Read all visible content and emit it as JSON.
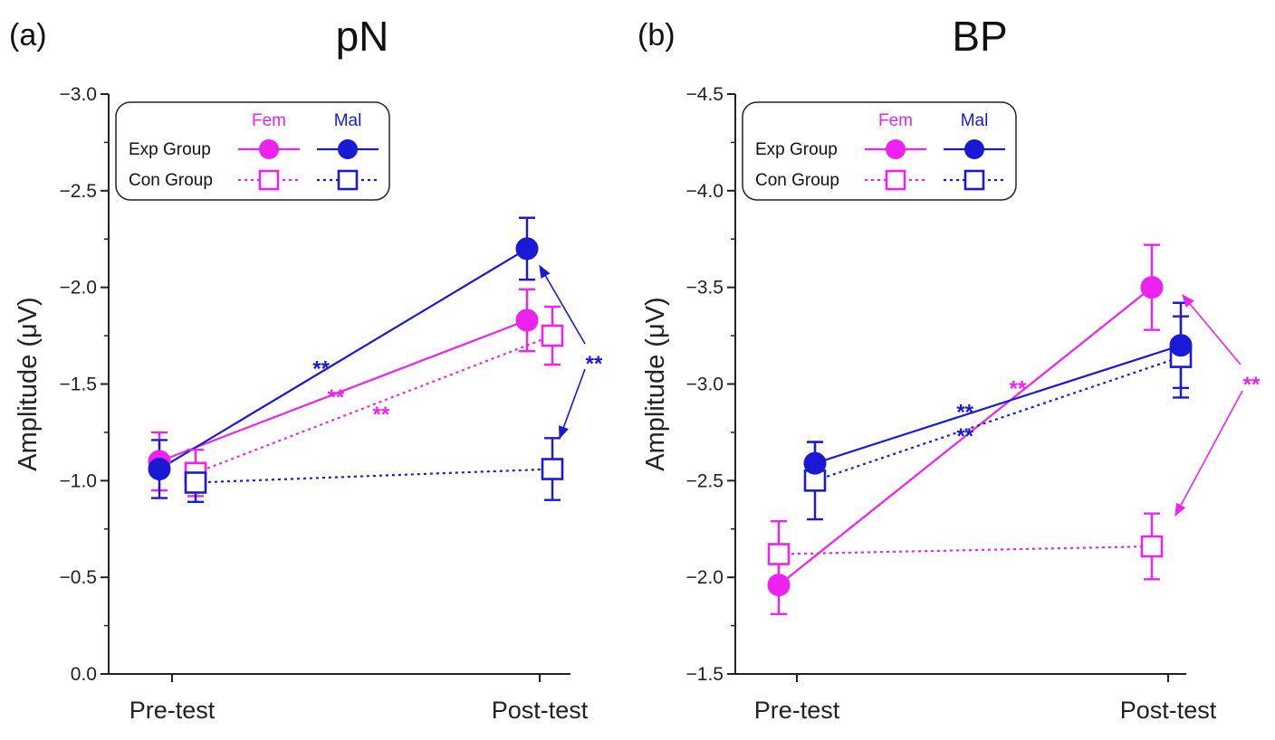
{
  "colors": {
    "female": "#ee22ee",
    "male": "#1a1ad6",
    "axis": "#222222"
  },
  "chart_data": [
    {
      "type": "line",
      "panel_letter": "(a)",
      "title": "pN",
      "ylabel": "Amplitude (μV)",
      "ylim": [
        0.0,
        -3.0
      ],
      "yticks": [
        0.0,
        -0.5,
        -1.0,
        -1.5,
        -2.0,
        -2.5,
        -3.0
      ],
      "ytick_labels": [
        "0.0",
        "−0.5",
        "−1.0",
        "−1.5",
        "−2.0",
        "−2.5",
        "−3.0"
      ],
      "categories": [
        "Pre-test",
        "Post-test"
      ],
      "legend": {
        "col_female": "Fem",
        "col_male": "Mal",
        "row_exp": "Exp Group",
        "row_con": "Con Group"
      },
      "series": [
        {
          "name": "Exp Group Fem",
          "group": "exp",
          "sex": "female",
          "values": [
            -1.1,
            -1.83
          ],
          "errors": [
            0.15,
            0.16
          ]
        },
        {
          "name": "Exp Group Mal",
          "group": "exp",
          "sex": "male",
          "values": [
            -1.06,
            -2.2
          ],
          "errors": [
            0.15,
            0.16
          ]
        },
        {
          "name": "Con Group Fem",
          "group": "con",
          "sex": "female",
          "values": [
            -1.04,
            -1.75
          ],
          "errors": [
            0.12,
            0.15
          ]
        },
        {
          "name": "Con Group Mal",
          "group": "con",
          "sex": "male",
          "values": [
            -0.99,
            -1.06
          ],
          "errors": [
            0.1,
            0.16
          ]
        }
      ],
      "annotations": [
        {
          "text": "**",
          "sex": "male",
          "series": "Exp Group Mal"
        },
        {
          "text": "**",
          "sex": "female",
          "series": "Exp Group Fem"
        },
        {
          "text": "**",
          "sex": "female",
          "series": "Con Group Fem"
        },
        {
          "text": "**",
          "sex": "male",
          "note": "Post-test Exp Mal vs Con Mal"
        }
      ]
    },
    {
      "type": "line",
      "panel_letter": "(b)",
      "title": "BP",
      "ylabel": "Amplitude (μV)",
      "ylim": [
        -1.5,
        -4.5
      ],
      "yticks": [
        -1.5,
        -2.0,
        -2.5,
        -3.0,
        -3.5,
        -4.0,
        -4.5
      ],
      "ytick_labels": [
        "−1.5",
        "−2.0",
        "−2.5",
        "−3.0",
        "−3.5",
        "−4.0",
        "−4.5"
      ],
      "categories": [
        "Pre-test",
        "Post-test"
      ],
      "legend": {
        "col_female": "Fem",
        "col_male": "Mal",
        "row_exp": "Exp Group",
        "row_con": "Con Group"
      },
      "series": [
        {
          "name": "Exp Group Fem",
          "group": "exp",
          "sex": "female",
          "values": [
            -1.96,
            -3.5
          ],
          "errors": [
            0.15,
            0.22
          ]
        },
        {
          "name": "Exp Group Mal",
          "group": "exp",
          "sex": "male",
          "values": [
            -2.59,
            -3.2
          ],
          "errors": [
            0.11,
            0.22
          ]
        },
        {
          "name": "Con Group Fem",
          "group": "con",
          "sex": "female",
          "values": [
            -2.12,
            -2.16
          ],
          "errors": [
            0.17,
            0.17
          ]
        },
        {
          "name": "Con Group Mal",
          "group": "con",
          "sex": "male",
          "values": [
            -2.5,
            -3.14
          ],
          "errors": [
            0.2,
            0.21
          ]
        }
      ],
      "annotations": [
        {
          "text": "**",
          "sex": "female",
          "series": "Exp Group Fem"
        },
        {
          "text": "**",
          "sex": "male",
          "series": "Exp Group Mal"
        },
        {
          "text": "**",
          "sex": "male",
          "series": "Con Group Mal"
        },
        {
          "text": "**",
          "sex": "female",
          "note": "Post-test Exp Fem vs Con Fem"
        }
      ]
    }
  ]
}
